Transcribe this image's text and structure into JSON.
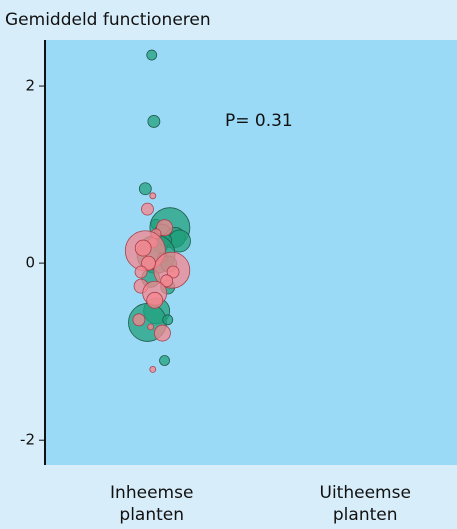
{
  "chart_data": {
    "type": "scatter",
    "title": "Gemiddeld functioneren",
    "annotation": "P= 0.31",
    "xlim": [
      -0.5,
      1.43
    ],
    "xticks": [
      {
        "value": 0,
        "label": "Inheemse planten"
      },
      {
        "value": 1,
        "label": "Uitheemse planten"
      }
    ],
    "ylim": [
      -2.28,
      2.52
    ],
    "yticks": [
      2,
      0,
      -2
    ],
    "series": [
      {
        "color": "#22a07e",
        "stroke": "#1f5a4a",
        "x": [
          0,
          0.01,
          -0.03,
          0.02,
          0.085,
          0.05,
          0.11,
          0.13,
          0.04,
          0.065,
          0.02,
          0.05,
          0.08,
          -0.005,
          0.075,
          0.023,
          -0.02,
          0.075,
          0.06
        ],
        "values": [
          2.35,
          1.6,
          0.84,
          0.44,
          0.4,
          0.35,
          0.29,
          0.25,
          0.19,
          0.26,
          0.1,
          0.06,
          -0.01,
          -0.17,
          -0.27,
          -0.54,
          -0.67,
          -0.64,
          -1.1
        ],
        "sizes": [
          5,
          6,
          6,
          5,
          20,
          8,
          10,
          11,
          7,
          6,
          19,
          5,
          8,
          9,
          7,
          13,
          19,
          5,
          5
        ]
      },
      {
        "color": "#f7868f",
        "stroke": "#a8404c",
        "x": [
          0.005,
          -0.02,
          0.06,
          0.02,
          0.005,
          -0.03,
          -0.04,
          0.094,
          -0.015,
          -0.05,
          0.1,
          0.07,
          -0.05,
          0.014,
          0.014,
          -0.06,
          0.05,
          -0.005,
          0.005
        ],
        "values": [
          0.76,
          0.61,
          0.4,
          0.33,
          0.23,
          0.14,
          0.17,
          -0.08,
          0,
          -0.1,
          -0.1,
          -0.2,
          -0.26,
          -0.34,
          -0.42,
          -0.64,
          -0.79,
          -0.72,
          -1.2
        ],
        "sizes": [
          3,
          6,
          8,
          5,
          5,
          20,
          8,
          18,
          7,
          6,
          6,
          6,
          7,
          12,
          8,
          6,
          8,
          3,
          3
        ]
      }
    ]
  }
}
